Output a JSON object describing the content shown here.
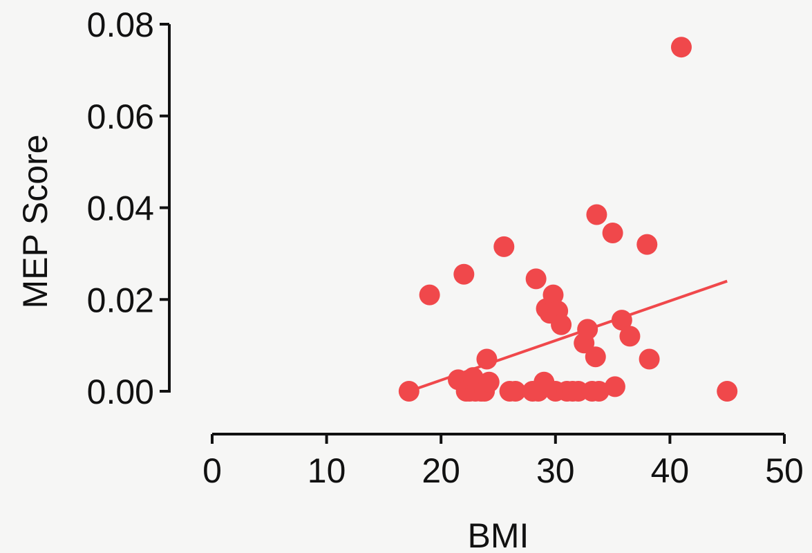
{
  "chart_data": {
    "type": "scatter",
    "title": "",
    "xlabel": "BMI",
    "ylabel": "MEP Score",
    "xlim": [
      0,
      50
    ],
    "ylim": [
      0,
      0.08
    ],
    "xticks": [
      "0",
      "10",
      "20",
      "30",
      "40",
      "50"
    ],
    "yticks": [
      "0.00",
      "0.02",
      "0.04",
      "0.06",
      "0.08"
    ],
    "grid": false,
    "legend": "none",
    "colors": {
      "points": "#f0484b",
      "fit_line": "#f0484b",
      "axis": "#111111",
      "background": "#f6f6f5"
    },
    "series": [
      {
        "x": [
          17.2,
          19.0,
          21.5,
          22.0,
          22.2,
          22.5,
          22.8,
          23.0,
          23.2,
          23.5,
          23.8,
          24.0,
          24.2,
          25.5,
          26.0,
          26.5,
          28.0,
          28.3,
          28.5,
          29.0,
          29.2,
          29.5,
          29.8,
          30.0,
          30.2,
          30.5,
          31.0,
          31.5,
          32.0,
          32.5,
          32.8,
          33.2,
          33.5,
          33.6,
          33.8,
          35.0,
          35.2,
          35.8,
          36.5,
          38.0,
          38.2,
          41.0,
          45.0
        ],
        "y": [
          0.0,
          0.021,
          0.0025,
          0.0255,
          0.0,
          0.0,
          0.003,
          0.0,
          0.001,
          0.0,
          0.0,
          0.007,
          0.002,
          0.0315,
          0.0,
          0.0,
          0.0,
          0.0245,
          0.0,
          0.002,
          0.018,
          0.017,
          0.021,
          0.0,
          0.0175,
          0.0145,
          0.0,
          0.0,
          0.0,
          0.0105,
          0.0135,
          0.0,
          0.0075,
          0.0385,
          0.0,
          0.0345,
          0.001,
          0.0155,
          0.012,
          0.032,
          0.007,
          0.075,
          0.0
        ]
      }
    ],
    "fit_line": {
      "x": [
        17.2,
        45.0
      ],
      "y": [
        0.0,
        0.024
      ]
    }
  }
}
